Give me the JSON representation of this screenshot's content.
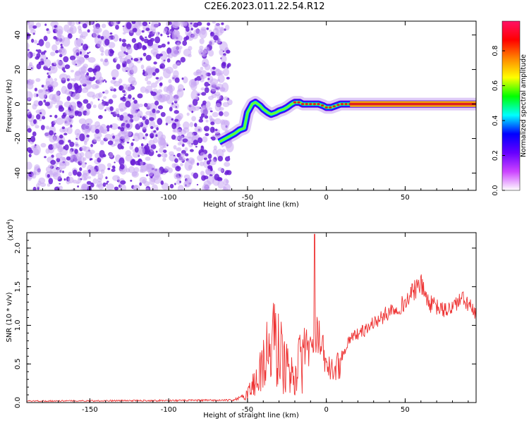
{
  "title": "C2E6.2023.011.22.54.R12",
  "colors": {
    "snr_line": "#ee3333",
    "purple_noise": "#6a1fd6",
    "light_purple": "#c9a8f2",
    "ridge_core": "#dd2222"
  },
  "chart_data": [
    {
      "type": "heatmap",
      "xlabel": "Height of straight line (km)",
      "ylabel": "Frequency (Hz)",
      "xlim": [
        -190,
        95
      ],
      "ylim": [
        -50,
        48
      ],
      "x_ticks": [
        -150,
        -100,
        -50,
        0,
        50
      ],
      "y_ticks": [
        -40,
        -20,
        0,
        20,
        40
      ],
      "noise_region_x": [
        -190,
        -61
      ],
      "ridge": {
        "x": [
          -68,
          -62,
          -58,
          -55,
          -52,
          -50,
          -47,
          -45,
          -42,
          -40,
          -37,
          -35,
          -32,
          -30,
          -27,
          -25,
          -22,
          -20,
          -17,
          -15,
          -12,
          -10,
          -7,
          -5,
          -2,
          0,
          3,
          6,
          9,
          12,
          15,
          20,
          30,
          40,
          50,
          60,
          70,
          80,
          95
        ],
        "y": [
          -22,
          -19,
          -17,
          -15,
          -14,
          -5,
          0,
          1,
          -1,
          -3,
          -5,
          -6,
          -5,
          -4,
          -3,
          -2,
          0,
          1,
          1,
          0,
          0,
          0,
          0,
          0,
          -1,
          -2,
          -2,
          -1,
          0,
          0,
          0,
          0,
          0,
          0,
          0,
          0,
          0,
          0,
          0
        ]
      },
      "colorbar": {
        "label": "Normalized spectral amplitude",
        "range": [
          0.0,
          0.97
        ],
        "ticks": [
          "0.0",
          "0.2",
          "0.4",
          "0.6",
          "0.8"
        ],
        "tick_values": [
          0.0,
          0.2,
          0.4,
          0.6,
          0.8
        ],
        "stops": [
          "#ffffff",
          "#cc44ff",
          "#6600ff",
          "#0000ff",
          "#00ffff",
          "#00ff00",
          "#ffff00",
          "#ff8800",
          "#ff0000",
          "#ff1166"
        ]
      }
    },
    {
      "type": "line",
      "xlabel": "Height of straight line (km)",
      "ylabel": "SNR (10 * v/v)",
      "scale_note": "(x10",
      "scale_exp": "4",
      "scale_close": ")",
      "xlim": [
        -190,
        95
      ],
      "ylim": [
        0,
        2.2
      ],
      "x_ticks": [
        -150,
        -100,
        -50,
        0,
        50
      ],
      "y_ticks": [
        "0.0",
        "0.5",
        "1.0",
        "1.5",
        "2.0"
      ],
      "y_tick_values": [
        0.0,
        0.5,
        1.0,
        1.5,
        2.0
      ],
      "series": [
        {
          "envelope_x": [
            -190,
            -60,
            -55,
            -50,
            -45,
            -40,
            -35,
            -32,
            -30,
            -27,
            -25,
            -22,
            -20,
            -15,
            -10,
            -8,
            -6,
            -4,
            -2,
            0,
            3,
            6,
            10,
            15,
            20,
            25,
            30,
            35,
            40,
            45,
            50,
            55,
            60,
            65,
            70,
            75,
            80,
            85,
            90,
            95
          ],
          "envelope_y": [
            0.02,
            0.03,
            0.06,
            0.2,
            0.45,
            0.85,
            1.2,
            1.3,
            1.1,
            0.9,
            0.7,
            0.6,
            0.75,
            0.85,
            0.8,
            0.75,
            0.9,
            0.85,
            0.7,
            0.55,
            0.45,
            0.5,
            0.6,
            0.85,
            0.9,
            0.95,
            1.05,
            1.1,
            1.2,
            1.25,
            1.3,
            1.45,
            1.55,
            1.3,
            1.25,
            1.2,
            1.25,
            1.35,
            1.3,
            1.12
          ],
          "spike_x": -7.5,
          "spike_y": 2.18
        }
      ]
    }
  ]
}
